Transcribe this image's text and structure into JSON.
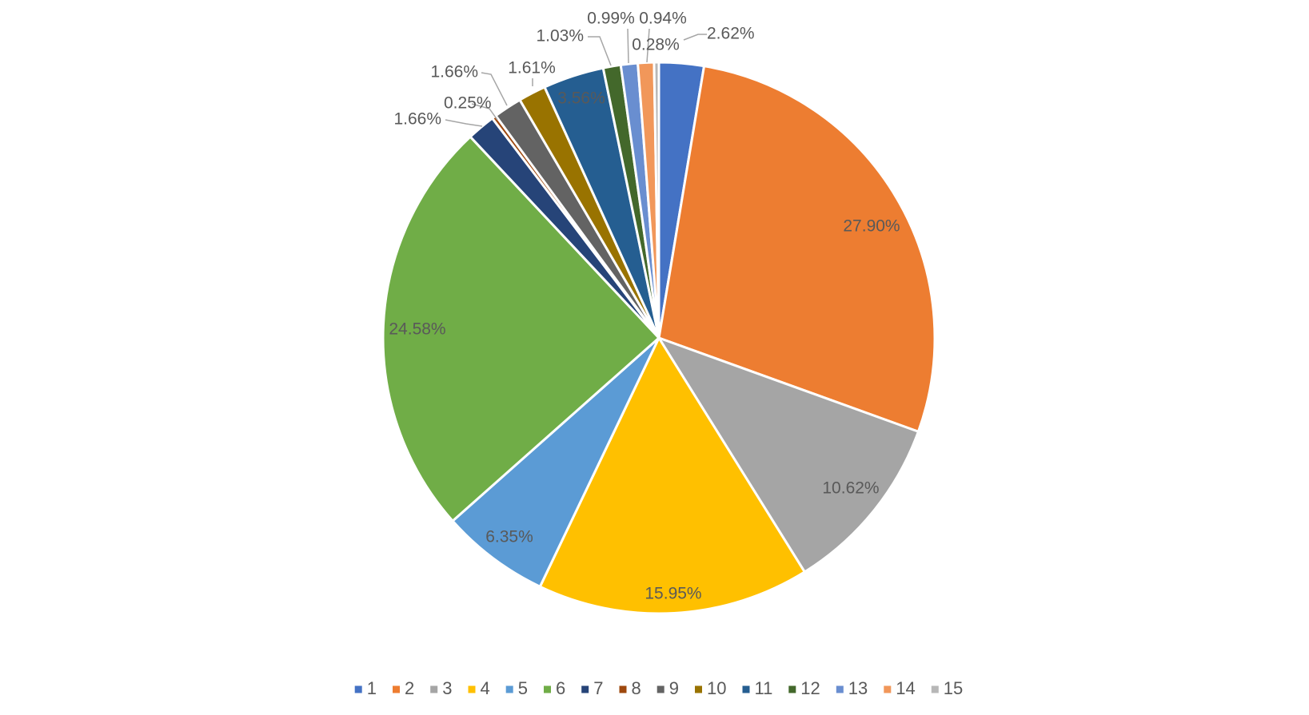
{
  "chart_data": {
    "type": "pie",
    "title": "",
    "categories": [
      "1",
      "2",
      "3",
      "4",
      "5",
      "6",
      "7",
      "8",
      "9",
      "10",
      "11",
      "12",
      "13",
      "14",
      "15"
    ],
    "values": [
      2.62,
      27.9,
      10.62,
      15.95,
      6.35,
      24.58,
      1.66,
      0.25,
      1.66,
      1.61,
      3.56,
      1.03,
      0.99,
      0.94,
      0.28
    ],
    "labels": [
      "2.62%",
      "27.90%",
      "10.62%",
      "15.95%",
      "6.35%",
      "24.58%",
      "1.66%",
      "0.25%",
      "1.66%",
      "1.61%",
      "3.56%",
      "1.03%",
      "0.99%",
      "0.94%",
      "0.28%"
    ],
    "colors": [
      "#4472C4",
      "#ED7D31",
      "#A5A5A5",
      "#FFC000",
      "#5B9BD5",
      "#70AD47",
      "#264478",
      "#9E480E",
      "#636363",
      "#997300",
      "#255E91",
      "#43682B",
      "#698ED0",
      "#F1975A",
      "#B7B7B7"
    ],
    "start_angle_deg": 0,
    "direction": "clockwise",
    "legend_position": "bottom"
  }
}
